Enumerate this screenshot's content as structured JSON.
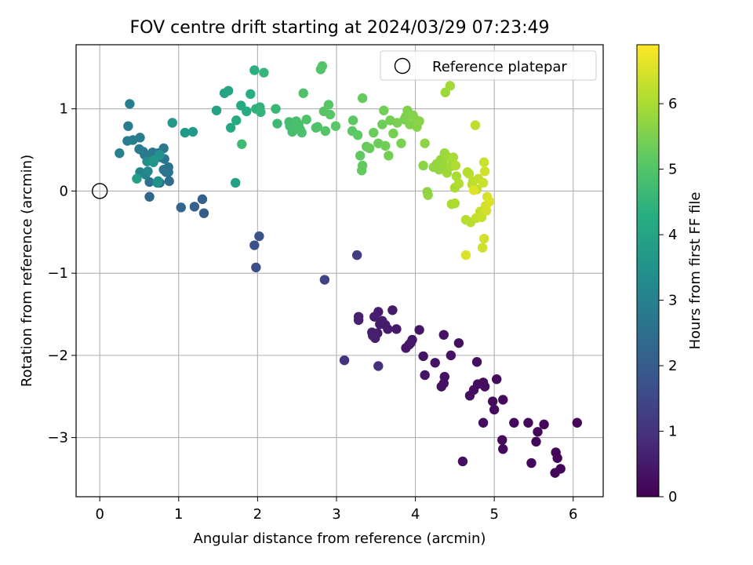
{
  "chart_data": {
    "type": "scatter",
    "title": "FOV centre drift starting at 2024/03/29 07:23:49",
    "xlabel": "Angular distance from reference (arcmin)",
    "ylabel": "Rotation from reference (arcmin)",
    "xlim": [
      -0.3,
      6.38
    ],
    "ylim": [
      -3.72,
      1.78
    ],
    "xticks": [
      0,
      1,
      2,
      3,
      4,
      5,
      6
    ],
    "yticks": [
      -3,
      -2,
      -1,
      0,
      1
    ],
    "xtick_labels": [
      "0",
      "1",
      "2",
      "3",
      "4",
      "5",
      "6"
    ],
    "ytick_labels": [
      "−3",
      "−2",
      "−1",
      "0",
      "1"
    ],
    "grid": true,
    "colormap": "viridis",
    "colorbar": {
      "label": "Hours from first FF file",
      "range": [
        0,
        6.9
      ],
      "ticks": [
        0,
        1,
        2,
        3,
        4,
        5,
        6
      ],
      "tick_labels": [
        "0",
        "1",
        "2",
        "3",
        "4",
        "5",
        "6"
      ]
    },
    "legend": {
      "placement": "top-right",
      "entries": [
        {
          "label": "Reference platepar",
          "marker": "open-circle"
        }
      ]
    },
    "reference_point": {
      "x": 0,
      "y": 0
    },
    "points": [
      {
        "x": 6.05,
        "y": -2.82,
        "c": 0.08
      },
      {
        "x": 5.78,
        "y": -3.18,
        "c": 0.08
      },
      {
        "x": 5.8,
        "y": -3.25,
        "c": 0.1
      },
      {
        "x": 5.84,
        "y": -3.38,
        "c": 0.1
      },
      {
        "x": 5.77,
        "y": -3.43,
        "c": 0.1
      },
      {
        "x": 5.63,
        "y": -2.84,
        "c": 0.12
      },
      {
        "x": 5.55,
        "y": -2.93,
        "c": 0.12
      },
      {
        "x": 5.53,
        "y": -3.05,
        "c": 0.14
      },
      {
        "x": 5.47,
        "y": -3.31,
        "c": 0.14
      },
      {
        "x": 5.43,
        "y": -2.82,
        "c": 0.15
      },
      {
        "x": 5.25,
        "y": -2.82,
        "c": 0.16
      },
      {
        "x": 5.1,
        "y": -3.03,
        "c": 0.16
      },
      {
        "x": 5.11,
        "y": -3.14,
        "c": 0.18
      },
      {
        "x": 5.11,
        "y": -2.54,
        "c": 0.18
      },
      {
        "x": 5.03,
        "y": -2.29,
        "c": 0.2
      },
      {
        "x": 4.98,
        "y": -2.56,
        "c": 0.2
      },
      {
        "x": 5.0,
        "y": -2.66,
        "c": 0.22
      },
      {
        "x": 4.86,
        "y": -2.33,
        "c": 0.22
      },
      {
        "x": 4.88,
        "y": -2.38,
        "c": 0.24
      },
      {
        "x": 4.86,
        "y": -2.82,
        "c": 0.24
      },
      {
        "x": 4.79,
        "y": -2.35,
        "c": 0.25
      },
      {
        "x": 4.78,
        "y": -2.08,
        "c": 0.26
      },
      {
        "x": 4.74,
        "y": -2.42,
        "c": 0.26
      },
      {
        "x": 4.69,
        "y": -2.49,
        "c": 0.28
      },
      {
        "x": 4.6,
        "y": -3.29,
        "c": 0.3
      },
      {
        "x": 4.55,
        "y": -1.85,
        "c": 0.3
      },
      {
        "x": 4.45,
        "y": -2.0,
        "c": 0.32
      },
      {
        "x": 4.37,
        "y": -2.26,
        "c": 0.32
      },
      {
        "x": 4.36,
        "y": -2.34,
        "c": 0.34
      },
      {
        "x": 4.33,
        "y": -2.38,
        "c": 0.34
      },
      {
        "x": 4.36,
        "y": -1.75,
        "c": 0.36
      },
      {
        "x": 4.25,
        "y": -2.09,
        "c": 0.36
      },
      {
        "x": 4.12,
        "y": -2.24,
        "c": 0.38
      },
      {
        "x": 4.1,
        "y": -2.01,
        "c": 0.38
      },
      {
        "x": 4.05,
        "y": -1.69,
        "c": 0.4
      },
      {
        "x": 3.96,
        "y": -1.81,
        "c": 0.42
      },
      {
        "x": 3.92,
        "y": -1.87,
        "c": 0.44
      },
      {
        "x": 3.88,
        "y": -1.91,
        "c": 0.44
      },
      {
        "x": 3.94,
        "y": -1.85,
        "c": 0.46
      },
      {
        "x": 3.76,
        "y": -1.68,
        "c": 0.48
      },
      {
        "x": 3.71,
        "y": -1.45,
        "c": 0.5
      },
      {
        "x": 3.65,
        "y": -1.68,
        "c": 0.5
      },
      {
        "x": 3.62,
        "y": -1.63,
        "c": 0.52
      },
      {
        "x": 3.58,
        "y": -1.58,
        "c": 0.52
      },
      {
        "x": 3.55,
        "y": -1.62,
        "c": 0.54
      },
      {
        "x": 3.53,
        "y": -1.47,
        "c": 0.54
      },
      {
        "x": 3.52,
        "y": -1.73,
        "c": 0.56
      },
      {
        "x": 3.48,
        "y": -1.53,
        "c": 0.56
      },
      {
        "x": 3.46,
        "y": -1.76,
        "c": 0.58
      },
      {
        "x": 3.45,
        "y": -1.72,
        "c": 0.58
      },
      {
        "x": 3.49,
        "y": -1.79,
        "c": 0.6
      },
      {
        "x": 3.28,
        "y": -1.53,
        "c": 0.62
      },
      {
        "x": 3.28,
        "y": -1.57,
        "c": 0.64
      },
      {
        "x": 3.53,
        "y": -2.13,
        "c": 0.9
      },
      {
        "x": 3.1,
        "y": -2.06,
        "c": 1.05
      },
      {
        "x": 3.26,
        "y": -0.78,
        "c": 1.25
      },
      {
        "x": 2.85,
        "y": -1.08,
        "c": 1.4
      },
      {
        "x": 1.98,
        "y": -0.93,
        "c": 1.65
      },
      {
        "x": 1.96,
        "y": -0.66,
        "c": 1.7
      },
      {
        "x": 2.02,
        "y": -0.55,
        "c": 1.75
      },
      {
        "x": 1.32,
        "y": -0.27,
        "c": 2.05
      },
      {
        "x": 1.3,
        "y": -0.1,
        "c": 2.1
      },
      {
        "x": 1.2,
        "y": -0.19,
        "c": 2.15
      },
      {
        "x": 1.03,
        "y": -0.2,
        "c": 2.2
      },
      {
        "x": 0.63,
        "y": -0.07,
        "c": 2.3
      },
      {
        "x": 0.76,
        "y": 0.1,
        "c": 2.4
      },
      {
        "x": 0.88,
        "y": 0.12,
        "c": 2.45
      },
      {
        "x": 0.73,
        "y": 0.42,
        "c": 2.5
      },
      {
        "x": 0.63,
        "y": 0.11,
        "c": 2.55
      },
      {
        "x": 0.87,
        "y": 0.29,
        "c": 2.6
      },
      {
        "x": 0.87,
        "y": 0.23,
        "c": 2.62
      },
      {
        "x": 0.84,
        "y": 0.23,
        "c": 2.64
      },
      {
        "x": 0.81,
        "y": 0.26,
        "c": 2.66
      },
      {
        "x": 0.82,
        "y": 0.39,
        "c": 2.68
      },
      {
        "x": 0.77,
        "y": 0.41,
        "c": 2.7
      },
      {
        "x": 0.74,
        "y": 0.46,
        "c": 2.72
      },
      {
        "x": 0.66,
        "y": 0.42,
        "c": 2.74
      },
      {
        "x": 0.81,
        "y": 0.52,
        "c": 2.76
      },
      {
        "x": 0.67,
        "y": 0.47,
        "c": 2.78
      },
      {
        "x": 0.57,
        "y": 0.44,
        "c": 2.8
      },
      {
        "x": 0.55,
        "y": 0.48,
        "c": 2.82
      },
      {
        "x": 0.5,
        "y": 0.51,
        "c": 2.84
      },
      {
        "x": 0.51,
        "y": 0.65,
        "c": 2.86
      },
      {
        "x": 0.42,
        "y": 0.62,
        "c": 2.88
      },
      {
        "x": 0.35,
        "y": 0.61,
        "c": 2.9
      },
      {
        "x": 0.36,
        "y": 0.79,
        "c": 2.92
      },
      {
        "x": 0.38,
        "y": 1.06,
        "c": 2.95
      },
      {
        "x": 0.25,
        "y": 0.46,
        "c": 3.0
      },
      {
        "x": 0.58,
        "y": 0.2,
        "c": 3.05
      },
      {
        "x": 0.51,
        "y": 0.23,
        "c": 3.1
      },
      {
        "x": 0.61,
        "y": 0.24,
        "c": 3.2
      },
      {
        "x": 0.6,
        "y": 0.36,
        "c": 3.3
      },
      {
        "x": 0.73,
        "y": 0.1,
        "c": 3.4
      },
      {
        "x": 0.74,
        "y": 0.12,
        "c": 3.45
      },
      {
        "x": 0.69,
        "y": 0.38,
        "c": 3.5
      },
      {
        "x": 0.76,
        "y": 0.44,
        "c": 3.55
      },
      {
        "x": 0.68,
        "y": 0.35,
        "c": 3.6
      },
      {
        "x": 0.92,
        "y": 0.83,
        "c": 3.65
      },
      {
        "x": 1.08,
        "y": 0.71,
        "c": 3.7
      },
      {
        "x": 1.18,
        "y": 0.72,
        "c": 3.75
      },
      {
        "x": 0.47,
        "y": 0.15,
        "c": 3.85
      },
      {
        "x": 1.72,
        "y": 0.1,
        "c": 3.9
      },
      {
        "x": 1.48,
        "y": 0.98,
        "c": 3.95
      },
      {
        "x": 1.58,
        "y": 1.19,
        "c": 4.0
      },
      {
        "x": 1.63,
        "y": 1.22,
        "c": 4.05
      },
      {
        "x": 1.66,
        "y": 0.77,
        "c": 4.1
      },
      {
        "x": 1.73,
        "y": 0.86,
        "c": 4.15
      },
      {
        "x": 1.79,
        "y": 1.04,
        "c": 4.2
      },
      {
        "x": 1.86,
        "y": 0.97,
        "c": 4.25
      },
      {
        "x": 1.91,
        "y": 1.18,
        "c": 4.3
      },
      {
        "x": 1.96,
        "y": 1.47,
        "c": 4.35
      },
      {
        "x": 1.98,
        "y": 1.0,
        "c": 4.4
      },
      {
        "x": 2.03,
        "y": 1.02,
        "c": 4.45
      },
      {
        "x": 2.04,
        "y": 0.96,
        "c": 4.5
      },
      {
        "x": 2.08,
        "y": 1.44,
        "c": 4.55
      },
      {
        "x": 2.23,
        "y": 1.0,
        "c": 4.6
      },
      {
        "x": 2.25,
        "y": 0.82,
        "c": 4.65
      },
      {
        "x": 1.8,
        "y": 0.57,
        "c": 4.7
      },
      {
        "x": 2.4,
        "y": 0.84,
        "c": 4.75
      },
      {
        "x": 2.41,
        "y": 0.79,
        "c": 4.78
      },
      {
        "x": 2.44,
        "y": 0.72,
        "c": 4.8
      },
      {
        "x": 2.49,
        "y": 0.85,
        "c": 4.82
      },
      {
        "x": 2.52,
        "y": 0.81,
        "c": 4.84
      },
      {
        "x": 2.54,
        "y": 0.75,
        "c": 4.86
      },
      {
        "x": 2.56,
        "y": 0.71,
        "c": 4.88
      },
      {
        "x": 2.58,
        "y": 1.19,
        "c": 4.9
      },
      {
        "x": 2.62,
        "y": 0.87,
        "c": 4.92
      },
      {
        "x": 2.74,
        "y": 0.77,
        "c": 4.94
      },
      {
        "x": 2.76,
        "y": 0.78,
        "c": 4.96
      },
      {
        "x": 2.8,
        "y": 1.48,
        "c": 4.98
      },
      {
        "x": 2.82,
        "y": 1.52,
        "c": 5.0
      },
      {
        "x": 2.86,
        "y": 0.73,
        "c": 5.02
      },
      {
        "x": 2.84,
        "y": 0.97,
        "c": 5.04
      },
      {
        "x": 2.9,
        "y": 1.05,
        "c": 5.06
      },
      {
        "x": 2.92,
        "y": 0.93,
        "c": 5.08
      },
      {
        "x": 2.99,
        "y": 0.79,
        "c": 5.1
      },
      {
        "x": 3.2,
        "y": 0.73,
        "c": 5.12
      },
      {
        "x": 3.21,
        "y": 0.86,
        "c": 5.14
      },
      {
        "x": 3.27,
        "y": 0.68,
        "c": 5.16
      },
      {
        "x": 3.3,
        "y": 0.43,
        "c": 5.18
      },
      {
        "x": 3.33,
        "y": 0.31,
        "c": 5.2
      },
      {
        "x": 3.32,
        "y": 0.25,
        "c": 5.22
      },
      {
        "x": 3.33,
        "y": 1.13,
        "c": 5.24
      },
      {
        "x": 3.38,
        "y": 0.54,
        "c": 5.26
      },
      {
        "x": 3.42,
        "y": 0.52,
        "c": 5.28
      },
      {
        "x": 3.47,
        "y": 0.71,
        "c": 5.3
      },
      {
        "x": 3.53,
        "y": 0.58,
        "c": 5.32
      },
      {
        "x": 3.58,
        "y": 0.81,
        "c": 5.34
      },
      {
        "x": 3.62,
        "y": 0.55,
        "c": 5.36
      },
      {
        "x": 3.6,
        "y": 0.98,
        "c": 5.38
      },
      {
        "x": 3.66,
        "y": 0.43,
        "c": 5.4
      },
      {
        "x": 3.68,
        "y": 0.86,
        "c": 5.42
      },
      {
        "x": 3.72,
        "y": 0.7,
        "c": 5.44
      },
      {
        "x": 3.77,
        "y": 0.83,
        "c": 5.46
      },
      {
        "x": 3.82,
        "y": 0.58,
        "c": 5.48
      },
      {
        "x": 3.86,
        "y": 0.87,
        "c": 5.5
      },
      {
        "x": 3.88,
        "y": 0.91,
        "c": 5.52
      },
      {
        "x": 3.9,
        "y": 0.98,
        "c": 5.54
      },
      {
        "x": 3.93,
        "y": 0.81,
        "c": 5.56
      },
      {
        "x": 3.97,
        "y": 0.92,
        "c": 5.58
      },
      {
        "x": 4.0,
        "y": 0.87,
        "c": 5.6
      },
      {
        "x": 4.02,
        "y": 0.78,
        "c": 5.62
      },
      {
        "x": 4.05,
        "y": 0.85,
        "c": 5.64
      },
      {
        "x": 4.1,
        "y": 0.31,
        "c": 5.66
      },
      {
        "x": 4.12,
        "y": 0.58,
        "c": 5.68
      },
      {
        "x": 4.15,
        "y": -0.01,
        "c": 5.7
      },
      {
        "x": 4.16,
        "y": -0.05,
        "c": 5.72
      },
      {
        "x": 4.23,
        "y": 0.29,
        "c": 5.74
      },
      {
        "x": 4.27,
        "y": 0.33,
        "c": 5.76
      },
      {
        "x": 4.3,
        "y": 0.26,
        "c": 5.78
      },
      {
        "x": 4.32,
        "y": 0.38,
        "c": 5.8
      },
      {
        "x": 4.35,
        "y": 0.32,
        "c": 5.82
      },
      {
        "x": 4.37,
        "y": 0.46,
        "c": 5.84
      },
      {
        "x": 4.38,
        "y": 1.2,
        "c": 5.86
      },
      {
        "x": 4.4,
        "y": 0.22,
        "c": 5.88
      },
      {
        "x": 4.42,
        "y": 0.41,
        "c": 5.9
      },
      {
        "x": 4.44,
        "y": 1.28,
        "c": 5.92
      },
      {
        "x": 4.45,
        "y": 0.3,
        "c": 5.94
      },
      {
        "x": 4.46,
        "y": -0.16,
        "c": 5.96
      },
      {
        "x": 4.48,
        "y": 0.41,
        "c": 5.98
      },
      {
        "x": 4.5,
        "y": 0.04,
        "c": 6.0
      },
      {
        "x": 4.52,
        "y": 0.18,
        "c": 6.02
      },
      {
        "x": 4.5,
        "y": -0.15,
        "c": 6.04
      },
      {
        "x": 4.51,
        "y": 0.31,
        "c": 6.06
      },
      {
        "x": 4.55,
        "y": 0.09,
        "c": 6.08
      },
      {
        "x": 4.64,
        "y": -0.35,
        "c": 6.1
      },
      {
        "x": 4.66,
        "y": 0.23,
        "c": 6.12
      },
      {
        "x": 4.68,
        "y": 0.21,
        "c": 6.14
      },
      {
        "x": 4.7,
        "y": -0.38,
        "c": 6.16
      },
      {
        "x": 4.72,
        "y": 0.08,
        "c": 6.18
      },
      {
        "x": 4.73,
        "y": 0.12,
        "c": 6.2
      },
      {
        "x": 4.76,
        "y": 0.8,
        "c": 6.22
      },
      {
        "x": 4.77,
        "y": -0.33,
        "c": 6.24
      },
      {
        "x": 4.78,
        "y": 0.02,
        "c": 6.26
      },
      {
        "x": 4.8,
        "y": 0.15,
        "c": 6.28
      },
      {
        "x": 4.82,
        "y": -0.25,
        "c": 6.3
      },
      {
        "x": 4.84,
        "y": -0.32,
        "c": 6.32
      },
      {
        "x": 4.86,
        "y": 0.1,
        "c": 6.34
      },
      {
        "x": 4.87,
        "y": 0.35,
        "c": 6.36
      },
      {
        "x": 4.85,
        "y": -0.69,
        "c": 6.38
      },
      {
        "x": 4.88,
        "y": 0.24,
        "c": 6.4
      },
      {
        "x": 4.89,
        "y": -0.18,
        "c": 6.42
      },
      {
        "x": 4.87,
        "y": -0.58,
        "c": 6.44
      },
      {
        "x": 4.9,
        "y": -0.24,
        "c": 6.46
      },
      {
        "x": 4.91,
        "y": -0.07,
        "c": 6.48
      },
      {
        "x": 4.94,
        "y": -0.13,
        "c": 6.5
      },
      {
        "x": 4.64,
        "y": -0.78,
        "c": 6.52
      },
      {
        "x": 4.74,
        "y": 0.01,
        "c": 6.55
      }
    ]
  }
}
